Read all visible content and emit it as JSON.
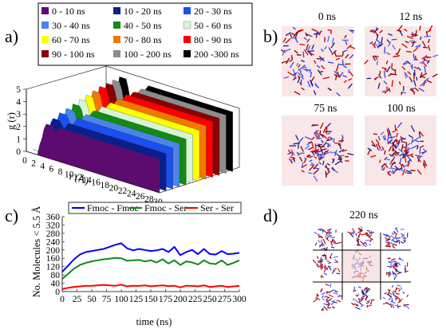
{
  "panels": {
    "a": "a)",
    "b": "b)",
    "c": "c)",
    "d": "d)"
  },
  "colors": {
    "legend_swatches": [
      "#5c0b6e",
      "#0a1e8c",
      "#1a4ff0",
      "#4a86e8",
      "#138a13",
      "#d6f5d6",
      "#ffff00",
      "#f07800",
      "#ff0000",
      "#8b0000",
      "#8c8c8c",
      "#000000"
    ],
    "fmoc_fmoc": "#0000ff",
    "fmoc_ser": "#138a13",
    "ser_ser": "#ff0000",
    "snapshot_bg": "#f9e6e6"
  },
  "chart_data": [
    {
      "type": "area",
      "panel": "a",
      "title": "",
      "xlabel": "r (Å)",
      "ylabel": "g (r)",
      "x_ticks": [
        "0",
        "2",
        "4",
        "6",
        "8",
        "10",
        "12",
        "14",
        "16",
        "18",
        "20",
        "22",
        "24",
        "26",
        "28",
        "30"
      ],
      "y_ticks": [
        "0",
        "1",
        "2",
        "3",
        "4",
        "5"
      ],
      "xlim": [
        0,
        30
      ],
      "ylim": [
        0,
        5
      ],
      "legend": {
        "placement": "top",
        "entries": [
          "0 - 10 ns",
          "10 - 20 ns",
          "20 - 30 ns",
          "30 - 40 ns",
          "40 - 50 ns",
          "50 - 60 ns",
          "60 - 70 ns",
          "70 - 80 ns",
          "80 - 90 ns",
          "90 - 100 ns",
          "100 - 200 ns",
          "200 -300 ns"
        ]
      },
      "series": [
        {
          "name": "0 - 10 ns",
          "peak": 2.7
        },
        {
          "name": "10 - 20 ns",
          "peak": 3.0
        },
        {
          "name": "20 - 30 ns",
          "peak": 3.3
        },
        {
          "name": "30 - 40 ns",
          "peak": 3.5
        },
        {
          "name": "40 - 50 ns",
          "peak": 3.7
        },
        {
          "name": "50 - 60 ns",
          "peak": 3.9
        },
        {
          "name": "60 - 70 ns",
          "peak": 4.1
        },
        {
          "name": "70 - 80 ns",
          "peak": 4.3
        },
        {
          "name": "80 - 90 ns",
          "peak": 4.5
        },
        {
          "name": "90 - 100 ns",
          "peak": 4.6
        },
        {
          "name": "100 - 200 ns",
          "peak": 4.7
        },
        {
          "name": "200 -300 ns",
          "peak": 4.8
        }
      ]
    },
    {
      "type": "line",
      "panel": "c",
      "title": "",
      "xlabel": "time (ns)",
      "ylabel": "No. Molecules < 5.5 Å",
      "xlim": [
        0,
        300
      ],
      "ylim": [
        0,
        360
      ],
      "x_ticks": [
        "0",
        "25",
        "50",
        "75",
        "100",
        "125",
        "150",
        "175",
        "200",
        "225",
        "250",
        "275",
        "300"
      ],
      "y_ticks": [
        "0",
        "40",
        "80",
        "120",
        "160",
        "200",
        "240",
        "280",
        "320",
        "360"
      ],
      "grid": false,
      "legend": {
        "placement": "top"
      },
      "x": [
        0,
        10,
        20,
        30,
        40,
        50,
        60,
        70,
        80,
        90,
        100,
        110,
        120,
        130,
        140,
        150,
        160,
        170,
        180,
        190,
        200,
        210,
        220,
        230,
        240,
        250,
        260,
        270,
        280,
        290,
        300
      ],
      "series": [
        {
          "name": "Fmoc - Fmoc",
          "values": [
            95,
            125,
            155,
            178,
            190,
            195,
            200,
            205,
            215,
            225,
            232,
            208,
            198,
            205,
            200,
            195,
            198,
            205,
            190,
            215,
            175,
            190,
            200,
            180,
            205,
            180,
            178,
            195,
            180,
            182,
            186
          ]
        },
        {
          "name": "Fmoc - Ser",
          "values": [
            60,
            85,
            110,
            128,
            138,
            145,
            150,
            155,
            158,
            162,
            160,
            148,
            150,
            152,
            145,
            150,
            140,
            155,
            135,
            150,
            128,
            145,
            140,
            130,
            150,
            135,
            132,
            150,
            128,
            138,
            150
          ]
        },
        {
          "name": "Ser - Ser",
          "values": [
            12,
            18,
            22,
            25,
            27,
            28,
            30,
            32,
            30,
            28,
            33,
            25,
            28,
            27,
            30,
            25,
            28,
            30,
            26,
            28,
            20,
            28,
            27,
            25,
            30,
            22,
            25,
            28,
            22,
            25,
            27
          ]
        }
      ]
    }
  ],
  "snapshots": {
    "b": [
      "0 ns",
      "12 ns",
      "75 ns",
      "100 ns"
    ],
    "d": "220 ns"
  }
}
